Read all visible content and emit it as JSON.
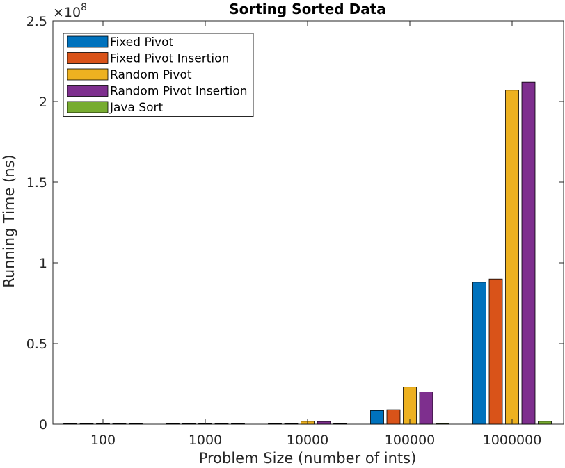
{
  "chart_data": {
    "type": "bar",
    "title": "Sorting Sorted Data",
    "xlabel": "Problem Size (number of ints)",
    "ylabel": "Running Time (ns)",
    "y_multiplier_label": "×10",
    "y_multiplier_exponent": "8",
    "categories": [
      "100",
      "1000",
      "10000",
      "100000",
      "1000000"
    ],
    "ylim": [
      0,
      250000000
    ],
    "yticks": [
      0,
      50000000,
      100000000,
      150000000,
      200000000,
      250000000
    ],
    "ytick_labels": [
      "0",
      "0.5",
      "1",
      "1.5",
      "2",
      "2.5"
    ],
    "legend_position": "top-left",
    "grid": false,
    "series": [
      {
        "name": "Fixed Pivot",
        "color": "#0072BD",
        "values": [
          10000,
          50000,
          300000,
          8500000,
          88000000
        ]
      },
      {
        "name": "Fixed Pivot Insertion",
        "color": "#D95319",
        "values": [
          10000,
          50000,
          300000,
          9000000,
          90000000
        ]
      },
      {
        "name": "Random Pivot",
        "color": "#EDB120",
        "values": [
          20000,
          100000,
          1800000,
          23000000,
          207000000
        ]
      },
      {
        "name": "Random Pivot Insertion",
        "color": "#7E2F8E",
        "values": [
          20000,
          100000,
          1700000,
          20000000,
          212000000
        ]
      },
      {
        "name": "Java Sort",
        "color": "#77AC30",
        "values": [
          5000,
          20000,
          100000,
          400000,
          1800000
        ]
      }
    ]
  }
}
